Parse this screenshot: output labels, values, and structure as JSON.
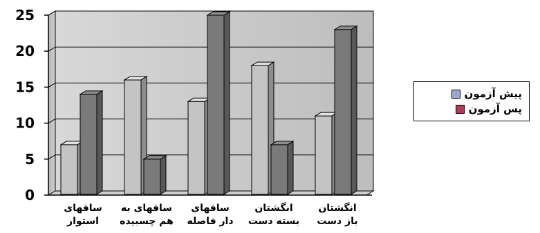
{
  "chart_data": {
    "type": "bar",
    "categories": [
      [
        "ساقهای",
        "استوار"
      ],
      [
        "ساقهای به",
        "هم چسبیده"
      ],
      [
        "ساقهای",
        "دار فاصله"
      ],
      [
        "انگشتان",
        "بسته دست"
      ],
      [
        "انگشتان",
        "باز دست"
      ]
    ],
    "series": [
      {
        "name": "پیش آزمون",
        "values": [
          7,
          16,
          13,
          18,
          11
        ],
        "color": "#c4c4c4"
      },
      {
        "name": "پس آزمون",
        "values": [
          14,
          5,
          25,
          7,
          23
        ],
        "color": "#7a7a7a"
      }
    ],
    "y_ticks": [
      "0",
      "5",
      "10",
      "15",
      "20",
      "25"
    ],
    "ylim": [
      0,
      25
    ],
    "grid": true,
    "legend_position": "right",
    "legend_swatch_colors": [
      "#9da6cf",
      "#b03a5b"
    ]
  }
}
